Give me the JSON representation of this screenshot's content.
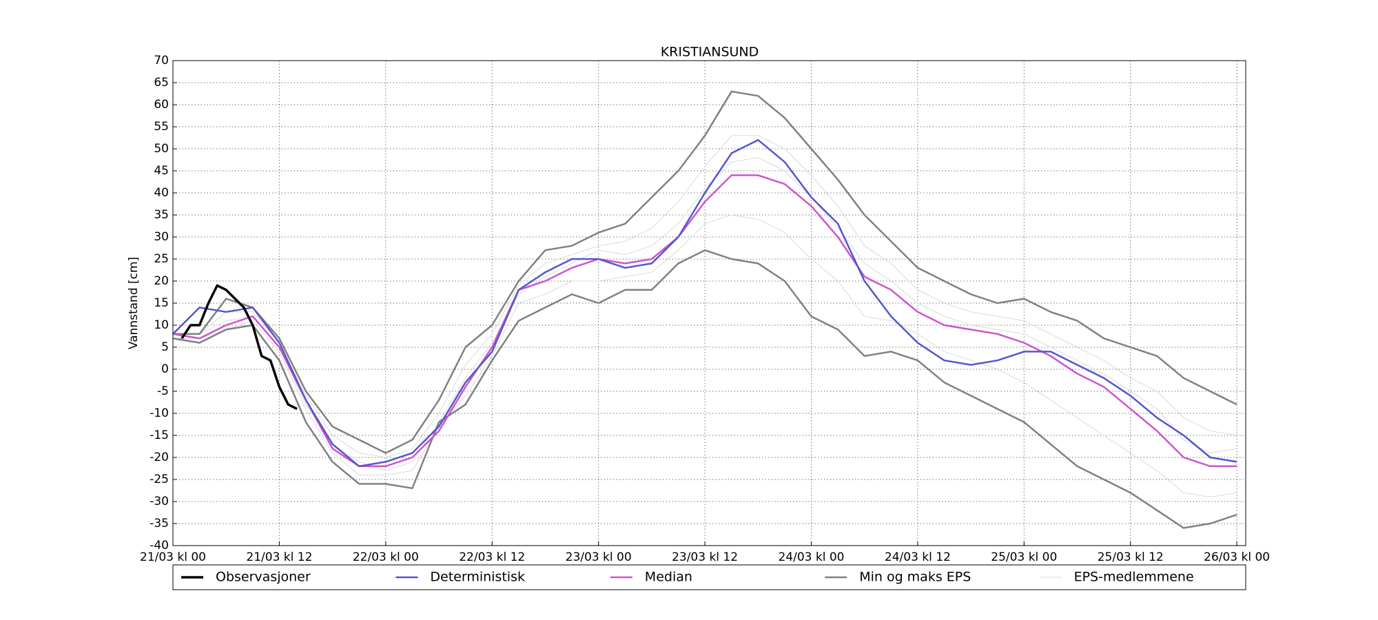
{
  "chart_data": {
    "type": "line",
    "title": "KRISTIANSUND",
    "ylabel": "Vannstand [cm]",
    "x": [
      0,
      3,
      6,
      9,
      12,
      15,
      18,
      21,
      24,
      27,
      30,
      33,
      36,
      39,
      42,
      45,
      48,
      51,
      54,
      57,
      60,
      63,
      66,
      69,
      72,
      75,
      78,
      81,
      84,
      87,
      90,
      93,
      96,
      99,
      102,
      105,
      108,
      111,
      114,
      117,
      120
    ],
    "xlim": [
      0,
      121
    ],
    "xticks": [
      {
        "value": 0,
        "label": "21/03 kl 00"
      },
      {
        "value": 12,
        "label": "21/03 kl 12"
      },
      {
        "value": 24,
        "label": "22/03 kl 00"
      },
      {
        "value": 36,
        "label": "22/03 kl 12"
      },
      {
        "value": 48,
        "label": "23/03 kl 00"
      },
      {
        "value": 60,
        "label": "23/03 kl 12"
      },
      {
        "value": 72,
        "label": "24/03 kl 00"
      },
      {
        "value": 84,
        "label": "24/03 kl 12"
      },
      {
        "value": 96,
        "label": "25/03 kl 00"
      },
      {
        "value": 108,
        "label": "25/03 kl 12"
      },
      {
        "value": 120,
        "label": "26/03 kl 00"
      }
    ],
    "ylim": [
      -40,
      70
    ],
    "yticks": [
      -40,
      -35,
      -30,
      -25,
      -20,
      -15,
      -10,
      -5,
      0,
      5,
      10,
      15,
      20,
      25,
      30,
      35,
      40,
      45,
      50,
      55,
      60,
      65,
      70
    ],
    "grid": true,
    "legend": "bottom",
    "series": [
      {
        "name": "EPS-medlemmene",
        "color": "#d9d9d9",
        "lines": [
          [
            8,
            8,
            13,
            13,
            6,
            -6,
            -15,
            -19,
            -20,
            -18,
            -10,
            1,
            8,
            19,
            24,
            26,
            28,
            29,
            32,
            38,
            46,
            53,
            53,
            50,
            44,
            37,
            28,
            24,
            18,
            15,
            13,
            12,
            11,
            8,
            5,
            2,
            -2,
            -5,
            -11,
            -14,
            -15
          ],
          [
            7,
            7,
            9,
            11,
            4,
            -9,
            -19,
            -24,
            -24,
            -23,
            -13,
            -6,
            3,
            15,
            17,
            20,
            20,
            21,
            22,
            27,
            33,
            35,
            34,
            31,
            25,
            20,
            12,
            11,
            8,
            4,
            2,
            0,
            -3,
            -7,
            -11,
            -15,
            -19,
            -23,
            -28,
            -29,
            -28
          ],
          [
            8,
            8,
            11,
            12,
            5,
            -8,
            -17,
            -21,
            -23,
            -21,
            -12,
            -2,
            6,
            17,
            21,
            24,
            27,
            26,
            28,
            33,
            41,
            47,
            48,
            45,
            39,
            32,
            24,
            20,
            15,
            12,
            10,
            9,
            8,
            5,
            2,
            -1,
            -5,
            -9,
            -16,
            -19,
            -18
          ]
        ]
      },
      {
        "name": "Min og maks EPS",
        "color": "#808080",
        "lines": [
          [
            8,
            8,
            16,
            14,
            7,
            -5,
            -13,
            -16,
            -19,
            -16,
            -7,
            5,
            10,
            20,
            27,
            28,
            31,
            33,
            39,
            45,
            53,
            63,
            62,
            57,
            50,
            43,
            35,
            29,
            23,
            20,
            17,
            15,
            16,
            13,
            11,
            7,
            5,
            3,
            -2,
            -5,
            -8
          ],
          [
            7,
            6,
            9,
            10,
            2,
            -12,
            -21,
            -26,
            -26,
            -27,
            -12,
            -8,
            2,
            11,
            14,
            17,
            15,
            18,
            18,
            24,
            27,
            25,
            24,
            20,
            12,
            9,
            3,
            4,
            2,
            -3,
            -6,
            -9,
            -12,
            -17,
            -22,
            -25,
            -28,
            -32,
            -36,
            -35,
            -33
          ]
        ]
      },
      {
        "name": "Median",
        "color": "#cc55cc",
        "values": [
          8,
          7,
          10,
          12,
          5,
          -7,
          -18,
          -22,
          -22,
          -20,
          -14,
          -4,
          5,
          18,
          20,
          23,
          25,
          24,
          25,
          30,
          38,
          44,
          44,
          42,
          37,
          30,
          21,
          18,
          13,
          10,
          9,
          8,
          6,
          3,
          -1,
          -4,
          -9,
          -14,
          -20,
          -22,
          -22
        ]
      },
      {
        "name": "Deterministisk",
        "color": "#5555cc",
        "values": [
          8,
          14,
          13,
          14,
          6,
          -7,
          -17,
          -22,
          -21,
          -19,
          -13,
          -3,
          4,
          18,
          22,
          25,
          25,
          23,
          24,
          30,
          40,
          49,
          52,
          47,
          39,
          33,
          20,
          12,
          6,
          2,
          1,
          2,
          4,
          4,
          1,
          -2,
          -6,
          -11,
          -15,
          -20,
          -21
        ]
      },
      {
        "name": "Observasjoner",
        "color": "#000000",
        "x": [
          1,
          2,
          3,
          4,
          5,
          6,
          7,
          8,
          9,
          10,
          11,
          12,
          13,
          14
        ],
        "values": [
          7,
          10,
          10,
          15,
          19,
          18,
          16,
          14,
          10,
          3,
          2,
          -4,
          -8,
          -9
        ]
      }
    ],
    "legend_order": [
      4,
      3,
      2,
      1,
      0
    ]
  }
}
